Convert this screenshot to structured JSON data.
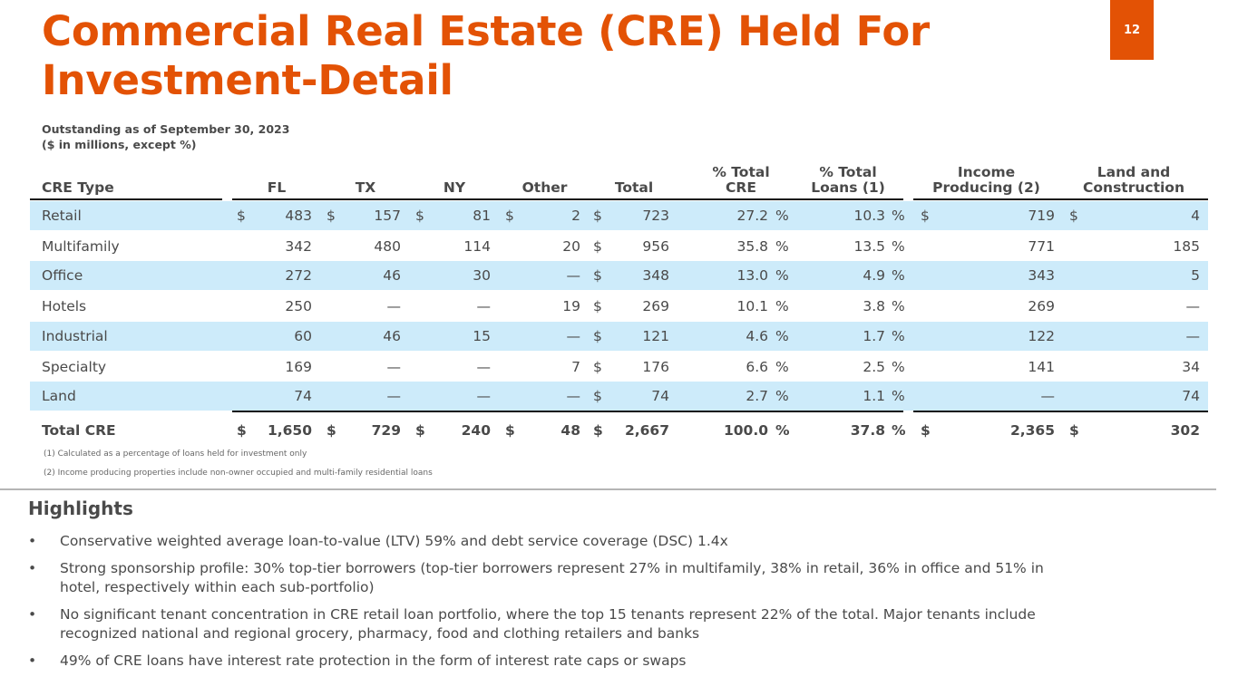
{
  "page": {
    "title_line1": "Commercial Real Estate (CRE) Held For",
    "title_line2": "Investment-Detail",
    "page_number": "12",
    "subtitle_line1": "Outstanding as of September 30, 2023",
    "subtitle_line2": "($ in millions, except %)",
    "accent_color": "#E35205",
    "row_highlight_color": "#CDEBFA"
  },
  "table": {
    "headers": {
      "cre_type": "CRE Type",
      "fl": "FL",
      "tx": "TX",
      "ny": "NY",
      "other": "Other",
      "total": "Total",
      "pct_cre_1": "% Total",
      "pct_cre_2": "CRE",
      "pct_loans_1": "% Total",
      "pct_loans_2": "Loans (1)",
      "income_1": "Income",
      "income_2": "Producing (2)",
      "land_1": "Land and",
      "land_2": "Construction"
    },
    "rows": [
      {
        "type": "Retail",
        "fl_cur": "$",
        "fl": "483",
        "tx_cur": "$",
        "tx": "157",
        "ny_cur": "$",
        "ny": "81",
        "other_cur": "$",
        "other": "2",
        "total_cur": "$",
        "total": "723",
        "pct_cre": "27.2",
        "pct_cre_sym": "%",
        "pct_loans": "10.3",
        "pct_loans_sym": "%",
        "income_cur": "$",
        "income": "719",
        "land_cur": "$",
        "land": "4"
      },
      {
        "type": "Multifamily",
        "fl_cur": "",
        "fl": "342",
        "tx_cur": "",
        "tx": "480",
        "ny_cur": "",
        "ny": "114",
        "other_cur": "",
        "other": "20",
        "total_cur": "$",
        "total": "956",
        "pct_cre": "35.8",
        "pct_cre_sym": "%",
        "pct_loans": "13.5",
        "pct_loans_sym": "%",
        "income_cur": "",
        "income": "771",
        "land_cur": "",
        "land": "185"
      },
      {
        "type": "Office",
        "fl_cur": "",
        "fl": "272",
        "tx_cur": "",
        "tx": "46",
        "ny_cur": "",
        "ny": "30",
        "other_cur": "",
        "other": "—",
        "total_cur": "$",
        "total": "348",
        "pct_cre": "13.0",
        "pct_cre_sym": "%",
        "pct_loans": "4.9",
        "pct_loans_sym": "%",
        "income_cur": "",
        "income": "343",
        "land_cur": "",
        "land": "5"
      },
      {
        "type": "Hotels",
        "fl_cur": "",
        "fl": "250",
        "tx_cur": "",
        "tx": "—",
        "ny_cur": "",
        "ny": "—",
        "other_cur": "",
        "other": "19",
        "total_cur": "$",
        "total": "269",
        "pct_cre": "10.1",
        "pct_cre_sym": "%",
        "pct_loans": "3.8",
        "pct_loans_sym": "%",
        "income_cur": "",
        "income": "269",
        "land_cur": "",
        "land": "—"
      },
      {
        "type": "Industrial",
        "fl_cur": "",
        "fl": "60",
        "tx_cur": "",
        "tx": "46",
        "ny_cur": "",
        "ny": "15",
        "other_cur": "",
        "other": "—",
        "total_cur": "$",
        "total": "121",
        "pct_cre": "4.6",
        "pct_cre_sym": "%",
        "pct_loans": "1.7",
        "pct_loans_sym": "%",
        "income_cur": "",
        "income": "122",
        "land_cur": "",
        "land": "—"
      },
      {
        "type": "Specialty",
        "fl_cur": "",
        "fl": "169",
        "tx_cur": "",
        "tx": "—",
        "ny_cur": "",
        "ny": "—",
        "other_cur": "",
        "other": "7",
        "total_cur": "$",
        "total": "176",
        "pct_cre": "6.6",
        "pct_cre_sym": "%",
        "pct_loans": "2.5",
        "pct_loans_sym": "%",
        "income_cur": "",
        "income": "141",
        "land_cur": "",
        "land": "34"
      },
      {
        "type": "Land",
        "fl_cur": "",
        "fl": "74",
        "tx_cur": "",
        "tx": "—",
        "ny_cur": "",
        "ny": "—",
        "other_cur": "",
        "other": "—",
        "total_cur": "$",
        "total": "74",
        "pct_cre": "2.7",
        "pct_cre_sym": "%",
        "pct_loans": "1.1",
        "pct_loans_sym": "%",
        "income_cur": "",
        "income": "—",
        "land_cur": "",
        "land": "74"
      }
    ],
    "total_row": {
      "type": "Total CRE",
      "fl_cur": "$",
      "fl": "1,650",
      "tx_cur": "$",
      "tx": "729",
      "ny_cur": "$",
      "ny": "240",
      "other_cur": "$",
      "other": "48",
      "total_cur": "$",
      "total": "2,667",
      "pct_cre": "100.0",
      "pct_cre_sym": "%",
      "pct_loans": "37.8",
      "pct_loans_sym": "%",
      "income_cur": "$",
      "income": "2,365",
      "land_cur": "$",
      "land": "302"
    }
  },
  "footnotes": [
    "(1) Calculated as a percentage of loans held for investment only",
    "(2)  Income producing properties include non-owner occupied and multi-family residential loans"
  ],
  "highlights": {
    "title": "Highlights",
    "bullet_symbol": "•",
    "items": [
      {
        "line1": "Conservative weighted average loan-to-value (LTV) 59% and debt service coverage (DSC) 1.4x",
        "line2": ""
      },
      {
        "line1": "Strong sponsorship profile: 30% top-tier borrowers (top-tier borrowers represent 27% in multifamily, 38% in retail, 36% in office and 51% in",
        "line2": "hotel, respectively within each sub-portfolio)"
      },
      {
        "line1": "No significant tenant concentration in CRE retail loan portfolio, where the top 15 tenants represent 22% of the total. Major tenants include",
        "line2": "recognized national and regional grocery, pharmacy, food and clothing retailers and banks"
      },
      {
        "line1": "49% of CRE loans have interest rate protection in the form of interest rate caps or swaps",
        "line2": ""
      }
    ]
  }
}
